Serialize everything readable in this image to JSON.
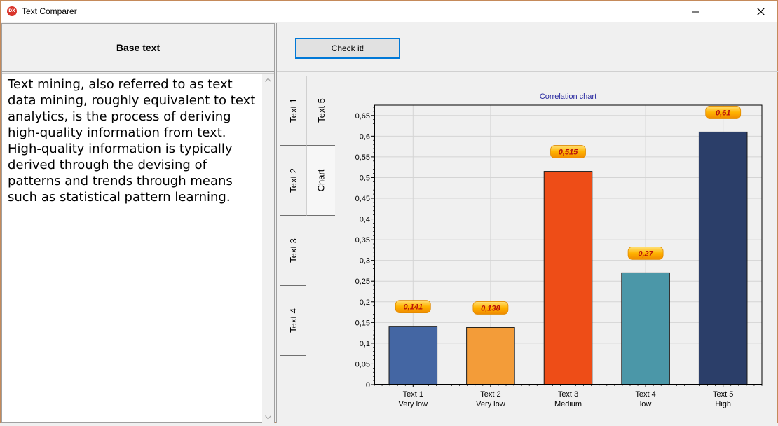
{
  "window": {
    "title": "Text Comparer",
    "app_icon_text": "DX"
  },
  "left": {
    "header": "Base text",
    "body": "Text mining, also referred to as text data mining, roughly equivalent to text analytics, is the process of deriving high-quality information from text. High-quality information is typically derived through the devising of patterns and trends through means such as statistical pattern learning."
  },
  "toolbar": {
    "check_label": "Check it!"
  },
  "tabs": {
    "col1": [
      "Text 1",
      "Text 2",
      "Text 3",
      "Text 4"
    ],
    "col2": [
      "Text 5",
      "Chart"
    ],
    "active": "Chart"
  },
  "colors": {
    "bar1": "#4466a3",
    "bar2": "#f39c39",
    "bar3": "#ee4d17",
    "bar4": "#4b97a8",
    "bar5": "#2b3e69",
    "title": "#2a2aa0",
    "label_text": "#b8100a"
  },
  "chart_data": {
    "type": "bar",
    "title": "Correlation chart",
    "categories": [
      "Text 1",
      "Text 2",
      "Text 3",
      "Text 4",
      "Text 5"
    ],
    "category_sublabels": [
      "Very low",
      "Very low",
      "Medium",
      "low",
      "High"
    ],
    "values": [
      0.141,
      0.138,
      0.515,
      0.27,
      0.61
    ],
    "value_labels": [
      "0,141",
      "0,138",
      "0,515",
      "0,27",
      "0,61"
    ],
    "ylim": [
      0,
      0.675
    ],
    "yticks": [
      0,
      0.05,
      0.1,
      0.15,
      0.2,
      0.25,
      0.3,
      0.35,
      0.4,
      0.45,
      0.5,
      0.55,
      0.6,
      0.65
    ],
    "ytick_labels": [
      "0",
      "0,05",
      "0,1",
      "0,15",
      "0,2",
      "0,25",
      "0,3",
      "0,35",
      "0,4",
      "0,45",
      "0,5",
      "0,55",
      "0,6",
      "0,65"
    ],
    "grid": true,
    "xlabel": "",
    "ylabel": ""
  }
}
